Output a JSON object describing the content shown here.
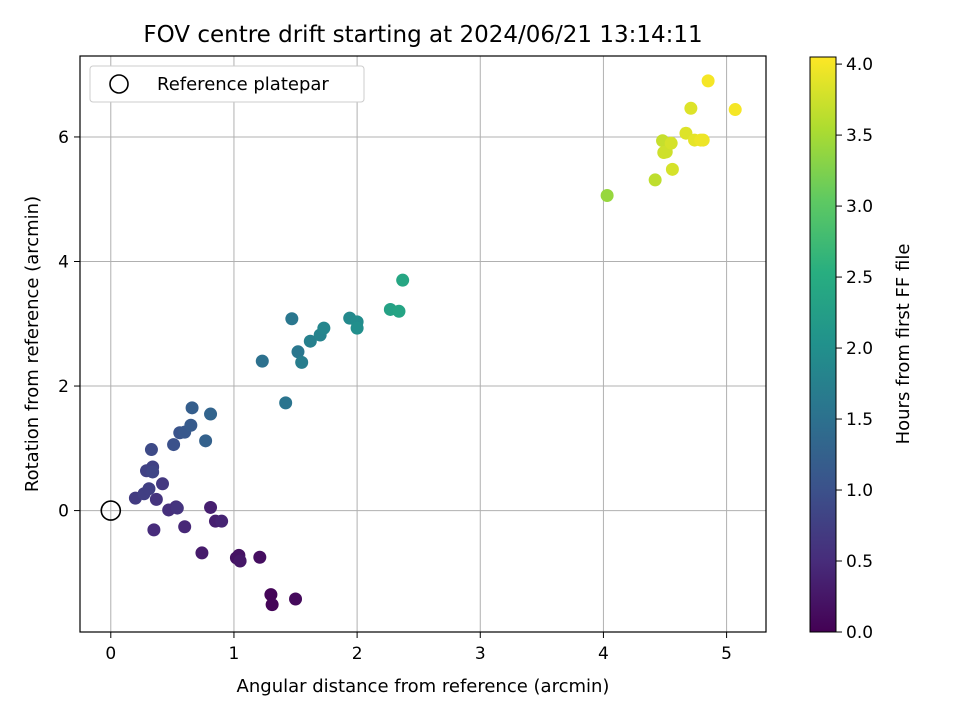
{
  "chart_data": {
    "type": "scatter",
    "title": "FOV centre drift starting at 2024/06/21 13:14:11",
    "xlabel": "Angular distance from reference (arcmin)",
    "ylabel": "Rotation from reference (arcmin)",
    "xlim": [
      -0.25,
      5.32
    ],
    "ylim": [
      -1.95,
      7.3
    ],
    "xticks": [
      0,
      1,
      2,
      3,
      4,
      5
    ],
    "yticks": [
      0,
      2,
      4,
      6
    ],
    "grid": true,
    "legend": {
      "position": "upper-left",
      "entries": [
        "Reference platepar"
      ]
    },
    "reference_point": {
      "x": 0,
      "y": 0
    },
    "colorbar": {
      "label": "Hours from first FF file",
      "colormap": "viridis",
      "range": [
        0,
        4.05
      ],
      "ticks": [
        "0.0",
        "0.5",
        "1.0",
        "1.5",
        "2.0",
        "2.5",
        "3.0",
        "3.5",
        "4.0"
      ]
    },
    "points": [
      {
        "x": 1.3,
        "y": -1.35,
        "c": 0.05
      },
      {
        "x": 1.31,
        "y": -1.51,
        "c": 0.05
      },
      {
        "x": 1.5,
        "y": -1.42,
        "c": 0.1
      },
      {
        "x": 1.21,
        "y": -0.75,
        "c": 0.15
      },
      {
        "x": 1.02,
        "y": -0.76,
        "c": 0.2
      },
      {
        "x": 1.04,
        "y": -0.72,
        "c": 0.2
      },
      {
        "x": 1.05,
        "y": -0.81,
        "c": 0.25
      },
      {
        "x": 0.74,
        "y": -0.68,
        "c": 0.3
      },
      {
        "x": 0.81,
        "y": 0.05,
        "c": 0.35
      },
      {
        "x": 0.85,
        "y": -0.17,
        "c": 0.35
      },
      {
        "x": 0.9,
        "y": -0.17,
        "c": 0.4
      },
      {
        "x": 0.6,
        "y": -0.26,
        "c": 0.45
      },
      {
        "x": 0.35,
        "y": -0.31,
        "c": 0.5
      },
      {
        "x": 0.47,
        "y": 0.01,
        "c": 0.55
      },
      {
        "x": 0.53,
        "y": 0.06,
        "c": 0.55
      },
      {
        "x": 0.54,
        "y": 0.04,
        "c": 0.6
      },
      {
        "x": 0.37,
        "y": 0.18,
        "c": 0.6
      },
      {
        "x": 0.42,
        "y": 0.43,
        "c": 0.65
      },
      {
        "x": 0.2,
        "y": 0.2,
        "c": 0.7
      },
      {
        "x": 0.27,
        "y": 0.27,
        "c": 0.75
      },
      {
        "x": 0.31,
        "y": 0.35,
        "c": 0.75
      },
      {
        "x": 0.29,
        "y": 0.64,
        "c": 0.8
      },
      {
        "x": 0.34,
        "y": 0.7,
        "c": 0.8
      },
      {
        "x": 0.34,
        "y": 0.62,
        "c": 0.85
      },
      {
        "x": 0.33,
        "y": 0.98,
        "c": 0.9
      },
      {
        "x": 0.51,
        "y": 1.06,
        "c": 1.0
      },
      {
        "x": 0.56,
        "y": 1.25,
        "c": 1.05
      },
      {
        "x": 0.6,
        "y": 1.26,
        "c": 1.1
      },
      {
        "x": 0.65,
        "y": 1.37,
        "c": 1.15
      },
      {
        "x": 0.66,
        "y": 1.65,
        "c": 1.2
      },
      {
        "x": 0.77,
        "y": 1.12,
        "c": 1.25
      },
      {
        "x": 0.81,
        "y": 1.55,
        "c": 1.3
      },
      {
        "x": 1.23,
        "y": 2.4,
        "c": 1.5
      },
      {
        "x": 1.42,
        "y": 1.73,
        "c": 1.55
      },
      {
        "x": 1.47,
        "y": 3.08,
        "c": 1.6
      },
      {
        "x": 1.52,
        "y": 2.55,
        "c": 1.6
      },
      {
        "x": 1.55,
        "y": 2.38,
        "c": 1.7
      },
      {
        "x": 1.62,
        "y": 2.72,
        "c": 1.75
      },
      {
        "x": 1.7,
        "y": 2.82,
        "c": 1.8
      },
      {
        "x": 1.73,
        "y": 2.93,
        "c": 1.85
      },
      {
        "x": 1.94,
        "y": 3.09,
        "c": 1.9
      },
      {
        "x": 2.0,
        "y": 3.03,
        "c": 1.95
      },
      {
        "x": 2.0,
        "y": 2.93,
        "c": 2.0
      },
      {
        "x": 2.27,
        "y": 3.23,
        "c": 2.3
      },
      {
        "x": 2.34,
        "y": 3.2,
        "c": 2.35
      },
      {
        "x": 2.37,
        "y": 3.7,
        "c": 2.4
      },
      {
        "x": 4.03,
        "y": 5.06,
        "c": 3.4
      },
      {
        "x": 4.42,
        "y": 5.31,
        "c": 3.65
      },
      {
        "x": 4.48,
        "y": 5.94,
        "c": 3.7
      },
      {
        "x": 4.49,
        "y": 5.75,
        "c": 3.75
      },
      {
        "x": 4.51,
        "y": 5.76,
        "c": 3.75
      },
      {
        "x": 4.55,
        "y": 5.9,
        "c": 3.8
      },
      {
        "x": 4.56,
        "y": 5.48,
        "c": 3.8
      },
      {
        "x": 4.67,
        "y": 6.06,
        "c": 3.85
      },
      {
        "x": 4.71,
        "y": 6.46,
        "c": 3.85
      },
      {
        "x": 4.74,
        "y": 5.95,
        "c": 3.9
      },
      {
        "x": 4.79,
        "y": 5.95,
        "c": 3.95
      },
      {
        "x": 4.81,
        "y": 5.95,
        "c": 3.95
      },
      {
        "x": 4.85,
        "y": 6.9,
        "c": 4.0
      },
      {
        "x": 5.07,
        "y": 6.44,
        "c": 4.0
      }
    ]
  }
}
